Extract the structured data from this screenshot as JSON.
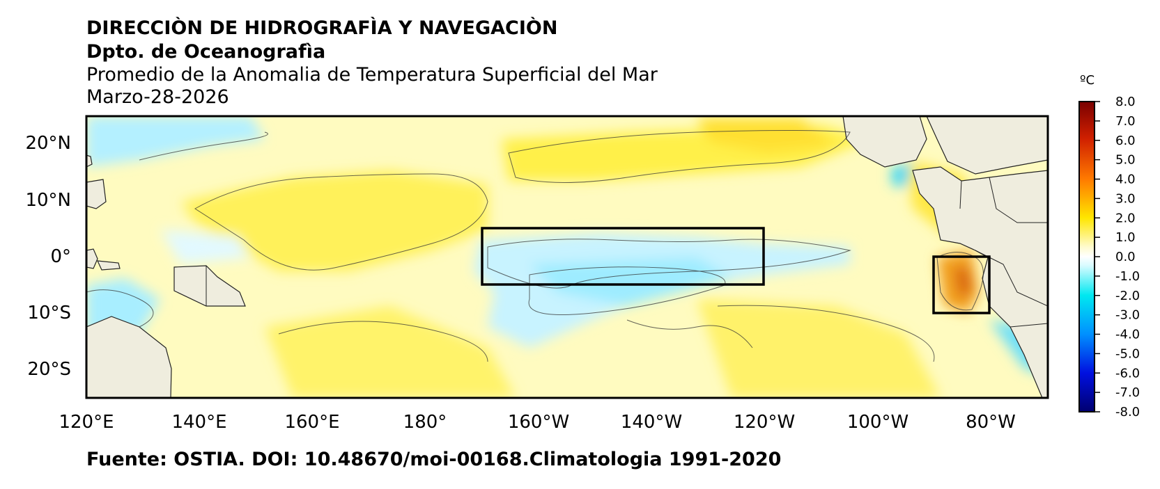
{
  "header": {
    "line1": "DIRECCIÒN DE HIDROGRAFÌA Y NAVEGACIÒN",
    "line2": "Dpto. de Oceanografìa",
    "line3": "Promedio de la Anomalia de Temperatura Superficial del Mar",
    "line4": "Marzo-28-2026"
  },
  "footer": "Fuente: OSTIA. DOI: 10.48670/moi-00168.Climatologia 1991-2020",
  "map": {
    "lon_labels": [
      "120°E",
      "140°E",
      "160°E",
      "180°",
      "160°W",
      "140°W",
      "120°W",
      "100°W",
      "80°W"
    ],
    "lat_labels": [
      "20°N",
      "10°N",
      "0°",
      "10°S",
      "20°S"
    ],
    "lon_range": [
      120,
      290
    ],
    "lat_range": [
      -25,
      25
    ],
    "boxes": [
      {
        "name": "nino34",
        "lon": [
          190,
          240
        ],
        "lat": [
          -5,
          5
        ]
      },
      {
        "name": "nino12",
        "lon": [
          270,
          280
        ],
        "lat": [
          -10,
          0
        ]
      }
    ],
    "colors": {
      "land": "#efedde",
      "ocean_base": "#fffbc0"
    }
  },
  "colorbar": {
    "unit": "ºC",
    "labels": [
      "8.0",
      "7.0",
      "6.0",
      "5.0",
      "4.0",
      "3.0",
      "2.0",
      "1.0",
      "0.0",
      "-1.0",
      "-2.0",
      "-3.0",
      "-4.0",
      "-5.0",
      "-6.0",
      "-7.0",
      "-8.0"
    ]
  }
}
